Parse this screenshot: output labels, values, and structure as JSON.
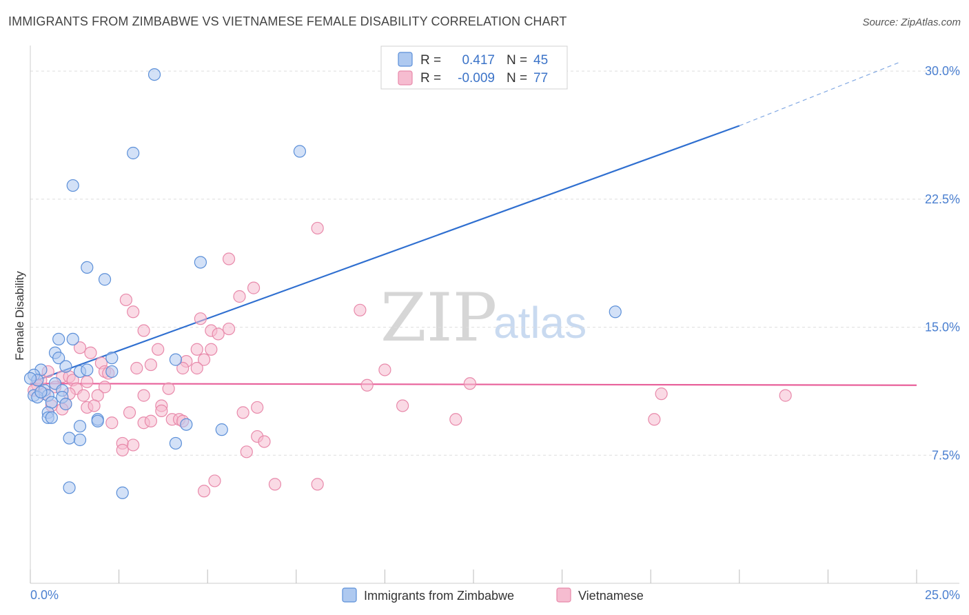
{
  "title": "IMMIGRANTS FROM ZIMBABWE VS VIETNAMESE FEMALE DISABILITY CORRELATION CHART",
  "source": "Source: ZipAtlas.com",
  "watermark": {
    "zip": "ZIP",
    "atlas": "atlas"
  },
  "colors": {
    "blue_fill": "#aec9f0",
    "blue_stroke": "#5b8fd8",
    "blue_line": "#2f6fd0",
    "pink_fill": "#f6bcd0",
    "pink_stroke": "#e889aa",
    "pink_line": "#e8609a",
    "grid": "#dddddd",
    "tick_text": "#4a7fd0"
  },
  "stats": {
    "blue": {
      "r_label": "R =",
      "r_value": "0.417",
      "n_label": "N =",
      "n_value": "45"
    },
    "pink": {
      "r_label": "R =",
      "r_value": "-0.009",
      "n_label": "N =",
      "n_value": "77"
    }
  },
  "chart_data": {
    "type": "scatter",
    "title": "IMMIGRANTS FROM ZIMBABWE VS VIETNAMESE FEMALE DISABILITY CORRELATION CHART",
    "xlabel": "",
    "ylabel": "Female Disability",
    "xlim": [
      0,
      25
    ],
    "ylim": [
      0,
      31.5
    ],
    "x_tick_labels": [
      "0.0%",
      "25.0%"
    ],
    "y_ticks": [
      7.5,
      15.0,
      22.5,
      30.0
    ],
    "y_tick_labels": [
      "7.5%",
      "15.0%",
      "22.5%",
      "30.0%"
    ],
    "grid": true,
    "legend_position": "bottom-center",
    "series": [
      {
        "name": "Immigrants from Zimbabwe",
        "color": "#5b8fd8",
        "trend": {
          "x": [
            0.2,
            20.0
          ],
          "y": [
            11.9,
            26.8
          ],
          "dashed_extension_to": [
            24.5,
            30.5
          ]
        },
        "points": [
          [
            3.5,
            29.8
          ],
          [
            2.9,
            25.2
          ],
          [
            7.6,
            25.3
          ],
          [
            1.2,
            23.3
          ],
          [
            1.6,
            18.5
          ],
          [
            2.1,
            17.8
          ],
          [
            4.8,
            18.8
          ],
          [
            16.5,
            15.9
          ],
          [
            0.8,
            14.3
          ],
          [
            1.2,
            14.3
          ],
          [
            0.7,
            13.5
          ],
          [
            0.8,
            13.2
          ],
          [
            2.3,
            13.2
          ],
          [
            4.1,
            13.1
          ],
          [
            1.0,
            12.7
          ],
          [
            0.3,
            12.5
          ],
          [
            1.4,
            12.4
          ],
          [
            1.6,
            12.5
          ],
          [
            2.3,
            12.4
          ],
          [
            0.1,
            12.2
          ],
          [
            0.2,
            11.9
          ],
          [
            0.7,
            11.7
          ],
          [
            0.4,
            11.3
          ],
          [
            0.1,
            11.0
          ],
          [
            0.2,
            10.9
          ],
          [
            0.5,
            11.0
          ],
          [
            0.9,
            11.3
          ],
          [
            0.9,
            10.9
          ],
          [
            0.6,
            10.6
          ],
          [
            1.0,
            10.5
          ],
          [
            0.5,
            10.0
          ],
          [
            0.5,
            9.7
          ],
          [
            0.6,
            9.7
          ],
          [
            1.4,
            9.2
          ],
          [
            1.9,
            9.6
          ],
          [
            1.9,
            9.5
          ],
          [
            4.4,
            9.3
          ],
          [
            5.4,
            9.0
          ],
          [
            1.1,
            8.5
          ],
          [
            1.4,
            8.4
          ],
          [
            4.1,
            8.2
          ],
          [
            1.1,
            5.6
          ],
          [
            2.6,
            5.3
          ],
          [
            0.0,
            12.0
          ],
          [
            0.3,
            11.2
          ]
        ]
      },
      {
        "name": "Vietnamese",
        "color": "#e889aa",
        "trend": {
          "x": [
            0.0,
            25.0
          ],
          "y": [
            11.7,
            11.6
          ]
        },
        "points": [
          [
            8.1,
            20.8
          ],
          [
            5.6,
            19.0
          ],
          [
            6.3,
            17.3
          ],
          [
            5.9,
            16.8
          ],
          [
            2.7,
            16.6
          ],
          [
            9.3,
            16.0
          ],
          [
            2.9,
            15.9
          ],
          [
            4.8,
            15.5
          ],
          [
            3.2,
            14.8
          ],
          [
            5.1,
            14.8
          ],
          [
            5.6,
            14.9
          ],
          [
            5.3,
            14.6
          ],
          [
            1.4,
            13.8
          ],
          [
            3.6,
            13.7
          ],
          [
            4.7,
            13.7
          ],
          [
            5.1,
            13.7
          ],
          [
            1.7,
            13.5
          ],
          [
            4.9,
            13.1
          ],
          [
            4.4,
            13.0
          ],
          [
            3.4,
            12.8
          ],
          [
            4.7,
            12.6
          ],
          [
            3.0,
            12.6
          ],
          [
            4.3,
            12.6
          ],
          [
            2.0,
            12.9
          ],
          [
            10.0,
            12.5
          ],
          [
            2.1,
            12.4
          ],
          [
            2.2,
            12.3
          ],
          [
            0.5,
            12.4
          ],
          [
            0.9,
            12.1
          ],
          [
            1.1,
            12.1
          ],
          [
            0.3,
            11.9
          ],
          [
            1.2,
            11.9
          ],
          [
            1.6,
            11.8
          ],
          [
            0.2,
            11.6
          ],
          [
            0.7,
            11.5
          ],
          [
            1.3,
            11.4
          ],
          [
            2.1,
            11.5
          ],
          [
            3.9,
            11.4
          ],
          [
            9.5,
            11.6
          ],
          [
            12.4,
            11.7
          ],
          [
            0.1,
            11.3
          ],
          [
            0.4,
            11.1
          ],
          [
            1.1,
            11.1
          ],
          [
            1.5,
            11.0
          ],
          [
            1.9,
            11.0
          ],
          [
            3.2,
            11.0
          ],
          [
            17.8,
            11.1
          ],
          [
            21.3,
            11.0
          ],
          [
            0.6,
            10.4
          ],
          [
            1.0,
            10.5
          ],
          [
            1.6,
            10.3
          ],
          [
            1.8,
            10.4
          ],
          [
            3.7,
            10.4
          ],
          [
            6.4,
            10.3
          ],
          [
            10.5,
            10.4
          ],
          [
            0.9,
            10.2
          ],
          [
            2.8,
            10.0
          ],
          [
            6.0,
            10.0
          ],
          [
            3.7,
            10.1
          ],
          [
            4.0,
            9.6
          ],
          [
            12.0,
            9.6
          ],
          [
            17.6,
            9.6
          ],
          [
            4.2,
            9.6
          ],
          [
            2.3,
            9.4
          ],
          [
            3.2,
            9.4
          ],
          [
            3.4,
            9.5
          ],
          [
            4.3,
            9.5
          ],
          [
            6.4,
            8.6
          ],
          [
            6.6,
            8.3
          ],
          [
            2.6,
            8.2
          ],
          [
            2.9,
            8.1
          ],
          [
            2.6,
            7.8
          ],
          [
            6.1,
            7.7
          ],
          [
            5.2,
            6.0
          ],
          [
            6.9,
            5.8
          ],
          [
            8.1,
            5.8
          ],
          [
            4.9,
            5.4
          ]
        ]
      }
    ]
  }
}
